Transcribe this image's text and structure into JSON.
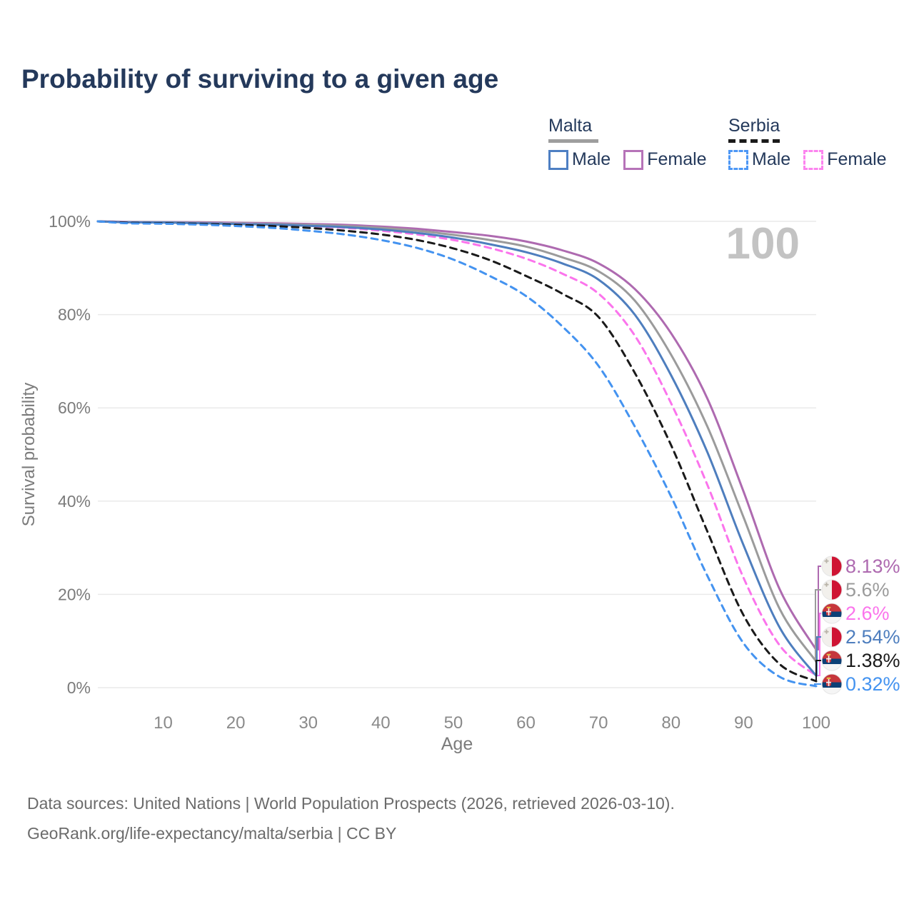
{
  "header": {
    "title": "Probability of surviving to a given age"
  },
  "legend": {
    "groups": [
      {
        "name": "Malta",
        "line_style": "solid",
        "line_color": "#9e9e9e",
        "items": [
          {
            "label": "Male",
            "color": "#4E7FC3",
            "dashed": false
          },
          {
            "label": "Female",
            "color": "#B673B8",
            "dashed": false
          }
        ]
      },
      {
        "name": "Serbia",
        "line_style": "dashed",
        "line_color": "#1a1a1a",
        "items": [
          {
            "label": "Male",
            "color": "#4D97F5",
            "dashed": true
          },
          {
            "label": "Female",
            "color": "#FC84EF",
            "dashed": true
          }
        ]
      }
    ]
  },
  "chart_data": {
    "type": "line",
    "title": "Probability of surviving to a given age",
    "xlabel": "Age",
    "ylabel": "Survival probability",
    "xlim": [
      1,
      100
    ],
    "ylim": [
      0,
      100
    ],
    "x_ticks": [
      10,
      20,
      30,
      40,
      50,
      60,
      70,
      80,
      90,
      100
    ],
    "y_ticks": [
      {
        "value": 0,
        "label": "0%"
      },
      {
        "value": 20,
        "label": "20%"
      },
      {
        "value": 40,
        "label": "40%"
      },
      {
        "value": 60,
        "label": "60%"
      },
      {
        "value": 80,
        "label": "80%"
      },
      {
        "value": 100,
        "label": "100%"
      }
    ],
    "grid": "horizontal",
    "legend_position": "top-right",
    "hover_age_label": "100",
    "x": [
      1,
      5,
      10,
      15,
      20,
      25,
      30,
      35,
      40,
      45,
      50,
      55,
      60,
      65,
      70,
      75,
      80,
      85,
      90,
      95,
      100
    ],
    "series": [
      {
        "name": "Malta Female",
        "country": "Malta",
        "sex": "Female",
        "color": "#AE6AB0",
        "dashed": false,
        "flag": "malta",
        "end_label": "8.13%",
        "values": [
          100,
          99.9,
          99.85,
          99.8,
          99.7,
          99.6,
          99.45,
          99.25,
          98.9,
          98.4,
          97.7,
          96.9,
          95.7,
          93.8,
          91.0,
          85.5,
          76.0,
          62.0,
          42.0,
          21.0,
          8.13
        ]
      },
      {
        "name": "Malta Both sexes",
        "country": "Malta",
        "sex": "Both",
        "color": "#9B9B9B",
        "dashed": false,
        "flag": "malta",
        "end_label": "5.6%",
        "values": [
          100,
          99.85,
          99.8,
          99.7,
          99.6,
          99.45,
          99.25,
          99.0,
          98.6,
          98.0,
          97.1,
          96.0,
          94.6,
          92.3,
          89.3,
          83.0,
          71.4,
          56.0,
          36.5,
          16.8,
          5.6
        ]
      },
      {
        "name": "Serbia Female",
        "country": "Serbia",
        "sex": "Female",
        "color": "#FB74EC",
        "dashed": true,
        "flag": "serbia",
        "end_label": "2.6%",
        "values": [
          100,
          99.8,
          99.7,
          99.6,
          99.5,
          99.3,
          99.0,
          98.6,
          98.0,
          97.2,
          96.0,
          94.3,
          92.0,
          88.8,
          84.5,
          75.5,
          61.0,
          43.5,
          23.5,
          9.0,
          2.6
        ]
      },
      {
        "name": "Malta Male",
        "country": "Malta",
        "sex": "Male",
        "color": "#4E7EBE",
        "dashed": false,
        "flag": "malta",
        "end_label": "2.54%",
        "values": [
          100,
          99.8,
          99.75,
          99.6,
          99.45,
          99.3,
          99.05,
          98.75,
          98.25,
          97.5,
          96.5,
          95.1,
          93.4,
          91.0,
          87.5,
          80.0,
          67.0,
          50.5,
          30.5,
          12.8,
          2.54
        ]
      },
      {
        "name": "Serbia Both sexes",
        "country": "Serbia",
        "sex": "Both",
        "color": "#1A1A1A",
        "dashed": true,
        "flag": "serbia",
        "end_label": "1.38%",
        "values": [
          100,
          99.7,
          99.6,
          99.45,
          99.25,
          99.0,
          98.6,
          98.0,
          97.2,
          96.0,
          94.2,
          91.7,
          88.3,
          84.5,
          79.5,
          67.5,
          52.0,
          33.5,
          15.5,
          5.0,
          1.38
        ]
      },
      {
        "name": "Serbia Male",
        "country": "Serbia",
        "sex": "Male",
        "color": "#4493F0",
        "dashed": true,
        "flag": "serbia",
        "end_label": "0.32%",
        "values": [
          100,
          99.6,
          99.5,
          99.3,
          99.0,
          98.6,
          98.0,
          97.2,
          96.0,
          94.3,
          91.8,
          88.3,
          84.0,
          77.5,
          69.0,
          56.0,
          41.0,
          24.0,
          9.5,
          2.3,
          0.32
        ]
      }
    ]
  },
  "footer": {
    "line1": "Data sources: United Nations | World Population Prospects (2026, retrieved 2026-03-10).",
    "line2": "GeoRank.org/life-expectancy/malta/serbia | CC BY"
  }
}
